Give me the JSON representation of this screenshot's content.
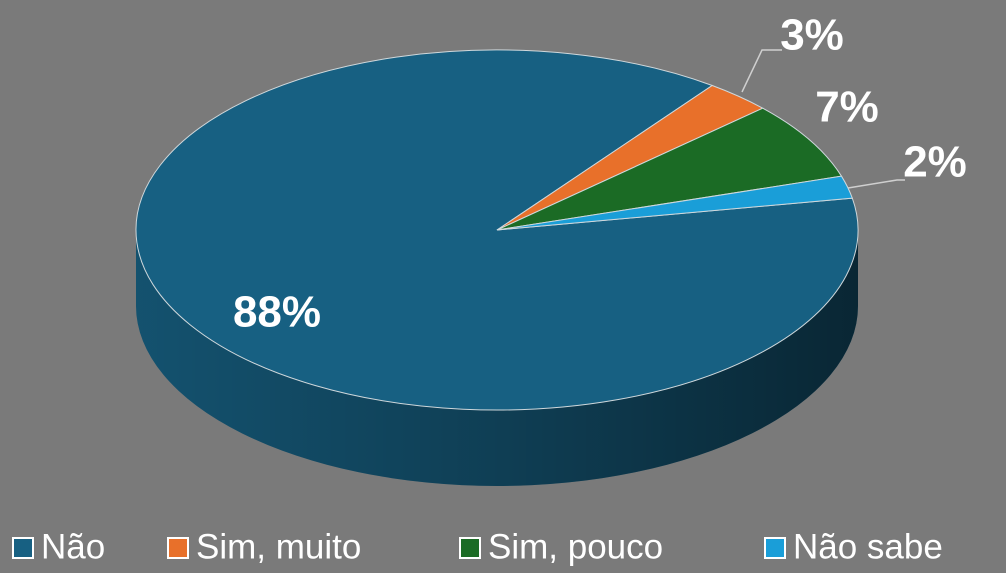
{
  "chart_data": {
    "type": "pie",
    "categories": [
      "Não",
      "Sim, muito",
      "Sim, pouco",
      "Não sabe"
    ],
    "values": [
      88,
      3,
      7,
      2
    ],
    "value_labels": [
      "88%",
      "3%",
      "7%",
      "2%"
    ],
    "colors": [
      "#176082",
      "#e8702a",
      "#1b6b25",
      "#1a9ed8"
    ],
    "legend": "bottom"
  }
}
